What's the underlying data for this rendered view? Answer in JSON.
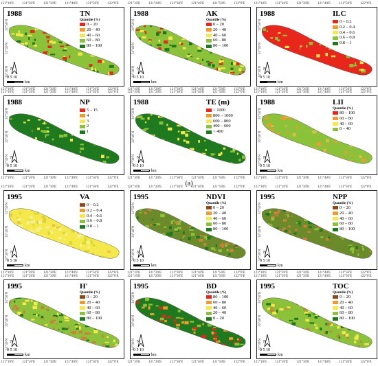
{
  "coords": {
    "lon": [
      "121°10'E",
      "121°20'E",
      "121°30'E",
      "121°40'E",
      "121°50'E",
      "122°0'E"
    ],
    "lat": [
      "31°50'N",
      "31°40'N",
      "31°30'N"
    ]
  },
  "scalebar": {
    "ticks": "0   5  10",
    "unit": "km"
  },
  "north": "N",
  "section_label": "(a)",
  "panels": [
    {
      "year": "1988",
      "var": "TN",
      "legend_title": "Quantile (%)",
      "classes": [
        {
          "label": "0 – 20",
          "color": "#e8261c"
        },
        {
          "label": "20 – 40",
          "color": "#f29a2e"
        },
        {
          "label": "40 – 60",
          "color": "#f5e84a"
        },
        {
          "label": "60 – 80",
          "color": "#8cc23a"
        },
        {
          "label": "80 – 100",
          "color": "#1f7a1f"
        }
      ],
      "fill": [
        "#8cc23a",
        "#f5e84a",
        "#e8261c",
        "#1f7a1f"
      ]
    },
    {
      "year": "1988",
      "var": "AK",
      "legend_title": "Quantile (%)",
      "classes": [
        {
          "label": "0 – 20",
          "color": "#e8261c"
        },
        {
          "label": "20 – 40",
          "color": "#f29a2e"
        },
        {
          "label": "40 – 60",
          "color": "#f5e84a"
        },
        {
          "label": "60 – 80",
          "color": "#8cc23a"
        },
        {
          "label": "80 – 100",
          "color": "#1f7a1f"
        }
      ],
      "fill": [
        "#8cc23a",
        "#f5e84a",
        "#e8261c",
        "#1f7a1f"
      ]
    },
    {
      "year": "1988",
      "var": "ILC",
      "legend_title": "",
      "classes": [
        {
          "label": "0 – 0.2",
          "color": "#e8261c"
        },
        {
          "label": "0.2 – 0.4",
          "color": "#f29a2e"
        },
        {
          "label": "0.4 – 0.6",
          "color": "#f5e84a"
        },
        {
          "label": "0.6 – 0.8",
          "color": "#8cc23a"
        },
        {
          "label": "0.8 – 1",
          "color": "#1f7a1f"
        }
      ],
      "fill": [
        "#e8261c",
        "#e8261c",
        "#f5e84a",
        "#8cc23a"
      ]
    },
    {
      "year": "1988",
      "var": "NP",
      "legend_title": "",
      "classes": [
        {
          "label": "5 – 15",
          "color": "#e8261c"
        },
        {
          "label": "4",
          "color": "#f29a2e"
        },
        {
          "label": "3",
          "color": "#f5e84a"
        },
        {
          "label": "2",
          "color": "#8cc23a"
        },
        {
          "label": "1",
          "color": "#1f7a1f"
        }
      ],
      "fill": [
        "#1f7a1f",
        "#8cc23a",
        "#1f7a1f",
        "#f5e84a"
      ]
    },
    {
      "year": "1988",
      "var": "TE (m)",
      "legend_title": "",
      "classes": [
        {
          "label": "> 1000",
          "color": "#e8261c"
        },
        {
          "label": "800 – 1000",
          "color": "#f29a2e"
        },
        {
          "label": "600 – 800",
          "color": "#f5e84a"
        },
        {
          "label": "400 – 600",
          "color": "#8cc23a"
        },
        {
          "label": "< 400",
          "color": "#1f7a1f"
        }
      ],
      "fill": [
        "#1f7a1f",
        "#8cc23a",
        "#1f7a1f",
        "#f5e84a"
      ]
    },
    {
      "year": "1988",
      "var": "LII",
      "legend_title": "Quantile (%)",
      "classes": [
        {
          "label": "80 – 100",
          "color": "#e8261c"
        },
        {
          "label": "60 – 80",
          "color": "#f29a2e"
        },
        {
          "label": "40 – 60",
          "color": "#f5e84a"
        },
        {
          "label": "0 – 40",
          "color": "#8cc23a"
        }
      ],
      "fill": [
        "#8cc23a",
        "#d8c24a",
        "#f29a2e",
        "#8cc23a"
      ]
    },
    {
      "year": "1995",
      "var": "VA",
      "legend_title": "",
      "classes": [
        {
          "label": "0 – 0.2",
          "color": "#8a4a1a"
        },
        {
          "label": "0.2 – 0.4",
          "color": "#f29a2e"
        },
        {
          "label": "0.4 – 0.6",
          "color": "#f5e84a"
        },
        {
          "label": "0.6 – 0.8",
          "color": "#8cc23a"
        },
        {
          "label": "0.8 – 1",
          "color": "#1f7a1f"
        }
      ],
      "fill": [
        "#f5e84a",
        "#d8d830",
        "#e6c84a",
        "#f5f08a"
      ]
    },
    {
      "year": "1995",
      "var": "NDVI",
      "legend_title": "Quantile (%)",
      "classes": [
        {
          "label": "0 – 20",
          "color": "#8a4a1a"
        },
        {
          "label": "20 – 40",
          "color": "#f29a2e"
        },
        {
          "label": "40 – 60",
          "color": "#f5e84a"
        },
        {
          "label": "60 – 80",
          "color": "#8cc23a"
        },
        {
          "label": "80 – 100",
          "color": "#1f7a1f"
        }
      ],
      "fill": [
        "#6b8a2a",
        "#8cc23a",
        "#c8823a",
        "#1f7a1f"
      ]
    },
    {
      "year": "1995",
      "var": "NPP",
      "legend_title": "Quantile (%)",
      "classes": [
        {
          "label": "0 – 20",
          "color": "#8a4a1a"
        },
        {
          "label": "20 – 40",
          "color": "#f29a2e"
        },
        {
          "label": "40 – 60",
          "color": "#f5e84a"
        },
        {
          "label": "60 – 80",
          "color": "#8cc23a"
        },
        {
          "label": "80 – 100",
          "color": "#1f7a1f"
        }
      ],
      "fill": [
        "#6b8a2a",
        "#8cc23a",
        "#c8823a",
        "#1f7a1f"
      ]
    },
    {
      "year": "1995",
      "var": "H'",
      "legend_title": "Quantile (%)",
      "classes": [
        {
          "label": "0 – 20",
          "color": "#8a4a1a"
        },
        {
          "label": "20 – 40",
          "color": "#f29a2e"
        },
        {
          "label": "40 – 60",
          "color": "#f5e84a"
        },
        {
          "label": "60 – 80",
          "color": "#8cc23a"
        },
        {
          "label": "80 – 100",
          "color": "#1f7a1f"
        }
      ],
      "fill": [
        "#8cc23a",
        "#c8823a",
        "#f5e84a",
        "#1f7a1f"
      ]
    },
    {
      "year": "1995",
      "var": "BD",
      "legend_title": "Quantile (%)",
      "classes": [
        {
          "label": "80 – 100",
          "color": "#e8261c"
        },
        {
          "label": "60 – 80",
          "color": "#f29a2e"
        },
        {
          "label": "40 – 60",
          "color": "#f5e84a"
        },
        {
          "label": "20 – 40",
          "color": "#8cc23a"
        },
        {
          "label": "0 – 20",
          "color": "#1f7a1f"
        }
      ],
      "fill": [
        "#1f7a1f",
        "#8cc23a",
        "#e8261c",
        "#f29a2e"
      ]
    },
    {
      "year": "1995",
      "var": "TOC",
      "legend_title": "Quantile (%)",
      "classes": [
        {
          "label": "0 – 20",
          "color": "#8a4a1a"
        },
        {
          "label": "20 – 40",
          "color": "#f29a2e"
        },
        {
          "label": "40 – 60",
          "color": "#f5e84a"
        },
        {
          "label": "60 – 80",
          "color": "#8cc23a"
        },
        {
          "label": "80 – 100",
          "color": "#1f7a1f"
        }
      ],
      "fill": [
        "#8cc23a",
        "#c8823a",
        "#f5e84a",
        "#1f7a1f"
      ]
    }
  ]
}
